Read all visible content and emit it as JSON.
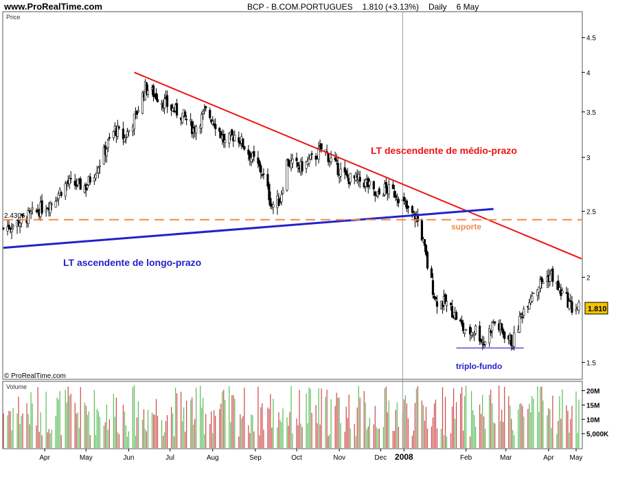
{
  "header": {
    "site": "www.ProRealTime.com",
    "symbol": "BCP - B.COM.PORTUGUES",
    "quote": "1.810 (+3.13%)",
    "period": "Daily",
    "date": "6 May"
  },
  "chart_data": {
    "type": "candlestick",
    "price_panel_label": "Price",
    "volume_panel_label": "Volume",
    "copyright": "© ProRealTime.com",
    "last_price_label": "1.810",
    "left_level_label": "2.4306",
    "price_axis": {
      "scale": "log",
      "ticks": [
        "1.5",
        "2",
        "2.5",
        "3",
        "3.5",
        "4",
        "4.5"
      ],
      "range": [
        1.42,
        4.9
      ]
    },
    "volume_axis": {
      "ticks": [
        "5,000K",
        "10M",
        "15M",
        "20M"
      ],
      "range": [
        0,
        23000000
      ]
    },
    "x_axis": {
      "labels": [
        "Apr",
        "May",
        "Jun",
        "Jul",
        "Aug",
        "Sep",
        "Oct",
        "Nov",
        "Dec",
        "2008",
        "Feb",
        "Mar",
        "Apr",
        "May"
      ],
      "date_range": [
        "2007-03-16",
        "2008-05-09"
      ]
    },
    "price_path": [
      [
        "2007-03-16",
        2.36
      ],
      [
        "2007-03-25",
        2.4
      ],
      [
        "2007-04-05",
        2.47
      ],
      [
        "2007-04-20",
        2.58
      ],
      [
        "2007-05-01",
        2.75
      ],
      [
        "2007-05-15",
        2.72
      ],
      [
        "2007-05-25",
        2.95
      ],
      [
        "2007-06-05",
        3.3
      ],
      [
        "2007-06-12",
        3.2
      ],
      [
        "2007-06-20",
        3.45
      ],
      [
        "2007-06-27",
        3.8
      ],
      [
        "2007-07-05",
        3.7
      ],
      [
        "2007-07-15",
        3.55
      ],
      [
        "2007-07-25",
        3.45
      ],
      [
        "2007-08-01",
        3.3
      ],
      [
        "2007-08-10",
        3.5
      ],
      [
        "2007-08-16",
        3.4
      ],
      [
        "2007-08-24",
        3.15
      ],
      [
        "2007-09-01",
        3.25
      ],
      [
        "2007-09-10",
        3.05
      ],
      [
        "2007-09-20",
        2.85
      ],
      [
        "2007-09-27",
        2.55
      ],
      [
        "2007-10-03",
        2.6
      ],
      [
        "2007-10-08",
        2.95
      ],
      [
        "2007-10-18",
        2.9
      ],
      [
        "2007-10-28",
        3.0
      ],
      [
        "2007-11-03",
        3.1
      ],
      [
        "2007-11-10",
        2.95
      ],
      [
        "2007-11-20",
        2.8
      ],
      [
        "2007-11-28",
        2.78
      ],
      [
        "2007-12-05",
        2.75
      ],
      [
        "2007-12-12",
        2.62
      ],
      [
        "2007-12-18",
        2.7
      ],
      [
        "2007-12-27",
        2.65
      ],
      [
        "2008-01-04",
        2.5
      ],
      [
        "2008-01-10",
        2.45
      ],
      [
        "2008-01-14",
        2.3
      ],
      [
        "2008-01-18",
        2.08
      ],
      [
        "2008-01-24",
        1.85
      ],
      [
        "2008-02-01",
        1.83
      ],
      [
        "2008-02-08",
        1.75
      ],
      [
        "2008-02-15",
        1.65
      ],
      [
        "2008-02-22",
        1.68
      ],
      [
        "2008-02-28",
        1.6
      ],
      [
        "2008-03-06",
        1.72
      ],
      [
        "2008-03-13",
        1.66
      ],
      [
        "2008-03-20",
        1.6
      ],
      [
        "2008-03-27",
        1.78
      ],
      [
        "2008-04-03",
        1.9
      ],
      [
        "2008-04-10",
        1.97
      ],
      [
        "2008-04-17",
        2.02
      ],
      [
        "2008-04-22",
        1.92
      ],
      [
        "2008-04-28",
        1.86
      ],
      [
        "2008-05-02",
        1.8
      ],
      [
        "2008-05-07",
        1.81
      ]
    ],
    "annotations": {
      "lt_descendente": {
        "label": "LT descendente de médio-prazo",
        "color": "#ee1111",
        "from": [
          "2007-06-19",
          4.0
        ],
        "to": [
          "2008-05-09",
          2.13
        ]
      },
      "lt_ascendente": {
        "label": "LT ascendente de longo-prazo",
        "color": "#2222cc",
        "from": [
          "2007-03-16",
          2.21
        ],
        "to": [
          "2008-03-06",
          2.52
        ]
      },
      "suporte": {
        "label": "suporte",
        "color": "#f08a4b",
        "price": 2.4306
      },
      "triplo_fundo": {
        "label": "triplo-fundo",
        "color": "#2222cc",
        "from": [
          "2008-02-08",
          1.575
        ],
        "to": [
          "2008-03-28",
          1.575
        ]
      },
      "divider_date": "2007-12-31"
    },
    "series": [
      {
        "name": "Price",
        "kind": "candles",
        "colors": {
          "up": "#118811",
          "down": "#cc2222"
        }
      },
      {
        "name": "Volume",
        "kind": "bars",
        "colors": {
          "up": "#55bb55",
          "down": "#cc4444"
        }
      }
    ]
  }
}
